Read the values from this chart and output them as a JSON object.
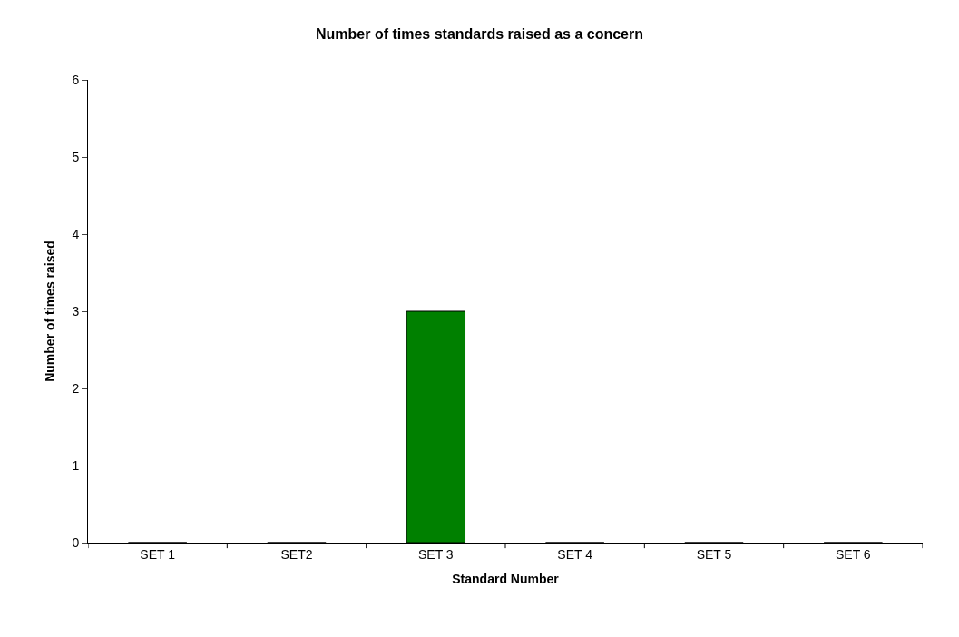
{
  "chart_data": {
    "type": "bar",
    "title": "Number of times standards raised as a concern",
    "xlabel": "Standard Number",
    "ylabel": "Number of times raised",
    "categories": [
      "SET 1",
      "SET2",
      "SET 3",
      "SET 4",
      "SET 5",
      "SET 6"
    ],
    "values": [
      0,
      0,
      3,
      0,
      0,
      0
    ],
    "color": "#008000",
    "ylim": [
      0,
      6
    ],
    "yticks": [
      0,
      1,
      2,
      3,
      4,
      5,
      6
    ]
  }
}
